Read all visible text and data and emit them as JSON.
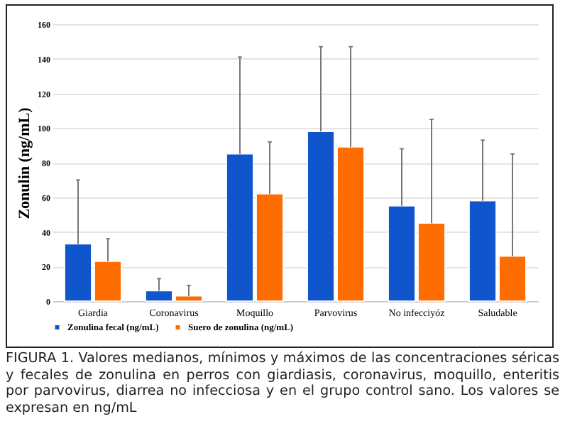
{
  "chart_data": {
    "type": "bar",
    "ylabel": "Zonulin (ng/mL)",
    "categories": [
      "Giardia",
      "Coronavirus",
      "Moquillo",
      "Parvovirus",
      "No infecciyóz",
      "Saludable"
    ],
    "series": [
      {
        "name": "Zonulina fecal (ng/mL)",
        "color": "#1155cc",
        "values": [
          33,
          6,
          85,
          98,
          55,
          58
        ],
        "errors": [
          [
            33,
            70
          ],
          [
            6,
            13
          ],
          [
            85,
            141
          ],
          [
            98,
            147
          ],
          [
            55,
            88
          ],
          [
            58,
            93
          ]
        ]
      },
      {
        "name": "Suero de zonulina (ng/mL)",
        "color": "#ff6d01",
        "values": [
          23,
          3,
          62,
          89,
          45,
          26
        ],
        "errors": [
          [
            23,
            36
          ],
          [
            3,
            9
          ],
          [
            62,
            92
          ],
          [
            89,
            147
          ],
          [
            45,
            105
          ],
          [
            26,
            85
          ]
        ]
      }
    ],
    "ylim": [
      0,
      160
    ],
    "yticks": [
      0,
      20,
      40,
      60,
      80,
      100,
      120,
      140,
      160
    ],
    "grid": "y",
    "legend": "bottom",
    "annotations": [
      "FIGURA 1. Valores medianos, mínimos y máximos de las concentraciones séricas y fecales de zonulina en perros con giardiasis, coronavirus, moquillo, enteritis por parvovirus, diarrea no infecciosa y en el grupo control sano. Los valores se expresan en ng/mL"
    ]
  }
}
